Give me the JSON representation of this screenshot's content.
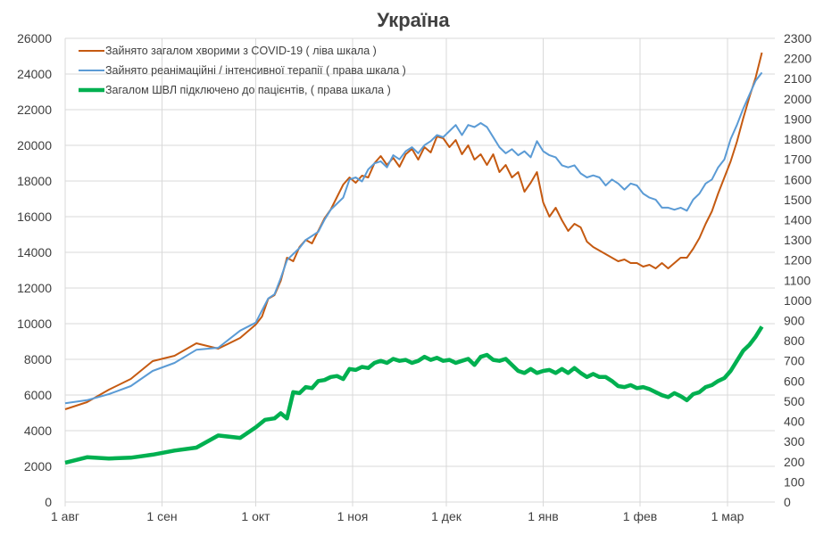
{
  "chart_data": {
    "type": "line",
    "title": "Україна",
    "x_ticks": [
      "1 авг",
      "1 сен",
      "1 окт",
      "1 ноя",
      "1 дек",
      "1 янв",
      "1 фев",
      "1 мар"
    ],
    "x_tick_dates": [
      "08-01",
      "09-01",
      "10-01",
      "11-01",
      "12-01",
      "01-01",
      "02-01",
      "03-01"
    ],
    "y_left": {
      "range": [
        0,
        26000
      ],
      "ticks": [
        "0",
        "2000",
        "4000",
        "6000",
        "8000",
        "10000",
        "12000",
        "14000",
        "16000",
        "18000",
        "20000",
        "22000",
        "24000",
        "26000"
      ]
    },
    "y_right": {
      "range": [
        0,
        2300
      ],
      "ticks": [
        "0",
        "100",
        "200",
        "300",
        "400",
        "500",
        "600",
        "700",
        "800",
        "900",
        "1000",
        "1100",
        "1200",
        "1300",
        "1400",
        "1500",
        "1600",
        "1700",
        "1800",
        "1900",
        "2000",
        "2100",
        "2200",
        "2300"
      ]
    },
    "grid": true,
    "legend_position": "top-left",
    "series": [
      {
        "name": "Зайнято загалом хворими з COVID-19 ( ліва шкала )",
        "axis": "left",
        "color": "#C55A11",
        "points": [
          [
            "08-01",
            5200
          ],
          [
            "08-08",
            5600
          ],
          [
            "08-15",
            6300
          ],
          [
            "08-22",
            6900
          ],
          [
            "08-29",
            7900
          ],
          [
            "09-05",
            8200
          ],
          [
            "09-12",
            8900
          ],
          [
            "09-19",
            8600
          ],
          [
            "09-26",
            9200
          ],
          [
            "10-01",
            9950
          ],
          [
            "10-03",
            10400
          ],
          [
            "10-05",
            11400
          ],
          [
            "10-07",
            11600
          ],
          [
            "10-09",
            12400
          ],
          [
            "10-11",
            13700
          ],
          [
            "10-13",
            13500
          ],
          [
            "10-15",
            14300
          ],
          [
            "10-17",
            14700
          ],
          [
            "10-19",
            14500
          ],
          [
            "10-21",
            15200
          ],
          [
            "10-23",
            15900
          ],
          [
            "10-25",
            16400
          ],
          [
            "10-27",
            17100
          ],
          [
            "10-29",
            17800
          ],
          [
            "10-31",
            18200
          ],
          [
            "11-02",
            17900
          ],
          [
            "11-04",
            18300
          ],
          [
            "11-06",
            18200
          ],
          [
            "11-08",
            19000
          ],
          [
            "11-10",
            19400
          ],
          [
            "11-12",
            18900
          ],
          [
            "11-14",
            19300
          ],
          [
            "11-16",
            18800
          ],
          [
            "11-18",
            19500
          ],
          [
            "11-20",
            19800
          ],
          [
            "11-22",
            19200
          ],
          [
            "11-24",
            19900
          ],
          [
            "11-26",
            19600
          ],
          [
            "11-28",
            20500
          ],
          [
            "11-30",
            20400
          ],
          [
            "12-02",
            19900
          ],
          [
            "12-04",
            20300
          ],
          [
            "12-06",
            19500
          ],
          [
            "12-08",
            20000
          ],
          [
            "12-10",
            19200
          ],
          [
            "12-12",
            19500
          ],
          [
            "12-14",
            18900
          ],
          [
            "12-16",
            19500
          ],
          [
            "12-18",
            18500
          ],
          [
            "12-20",
            18900
          ],
          [
            "12-22",
            18200
          ],
          [
            "12-24",
            18500
          ],
          [
            "12-26",
            17400
          ],
          [
            "12-28",
            17900
          ],
          [
            "12-30",
            18500
          ],
          [
            "01-01",
            16800
          ],
          [
            "01-03",
            16000
          ],
          [
            "01-05",
            16500
          ],
          [
            "01-07",
            15800
          ],
          [
            "01-09",
            15200
          ],
          [
            "01-11",
            15600
          ],
          [
            "01-13",
            15400
          ],
          [
            "01-15",
            14600
          ],
          [
            "01-17",
            14300
          ],
          [
            "01-19",
            14100
          ],
          [
            "01-21",
            13900
          ],
          [
            "01-23",
            13700
          ],
          [
            "01-25",
            13500
          ],
          [
            "01-27",
            13600
          ],
          [
            "01-29",
            13400
          ],
          [
            "01-31",
            13400
          ],
          [
            "02-02",
            13200
          ],
          [
            "02-04",
            13300
          ],
          [
            "02-06",
            13100
          ],
          [
            "02-08",
            13400
          ],
          [
            "02-10",
            13100
          ],
          [
            "02-12",
            13400
          ],
          [
            "02-14",
            13700
          ],
          [
            "02-16",
            13700
          ],
          [
            "02-18",
            14200
          ],
          [
            "02-20",
            14800
          ],
          [
            "02-22",
            15600
          ],
          [
            "02-24",
            16300
          ],
          [
            "02-26",
            17300
          ],
          [
            "02-28",
            18200
          ],
          [
            "03-02",
            19100
          ],
          [
            "03-04",
            20200
          ],
          [
            "03-06",
            21500
          ],
          [
            "03-08",
            22700
          ],
          [
            "03-10",
            23800
          ],
          [
            "03-12",
            25200
          ]
        ]
      },
      {
        "name": "Зайнято реанімаційні / інтенсивної терапії ( права шкала )",
        "axis": "right",
        "color": "#5B9BD5",
        "points": [
          [
            "08-01",
            490
          ],
          [
            "08-08",
            505
          ],
          [
            "08-15",
            535
          ],
          [
            "08-22",
            575
          ],
          [
            "08-29",
            650
          ],
          [
            "09-05",
            690
          ],
          [
            "09-12",
            755
          ],
          [
            "09-19",
            765
          ],
          [
            "09-26",
            850
          ],
          [
            "10-01",
            890
          ],
          [
            "10-03",
            950
          ],
          [
            "10-05",
            1010
          ],
          [
            "10-07",
            1030
          ],
          [
            "10-09",
            1110
          ],
          [
            "10-11",
            1200
          ],
          [
            "10-13",
            1230
          ],
          [
            "10-15",
            1260
          ],
          [
            "10-17",
            1300
          ],
          [
            "10-19",
            1320
          ],
          [
            "10-21",
            1340
          ],
          [
            "10-23",
            1400
          ],
          [
            "10-25",
            1450
          ],
          [
            "10-27",
            1480
          ],
          [
            "10-29",
            1510
          ],
          [
            "10-31",
            1600
          ],
          [
            "11-02",
            1610
          ],
          [
            "11-04",
            1590
          ],
          [
            "11-06",
            1650
          ],
          [
            "11-08",
            1680
          ],
          [
            "11-10",
            1690
          ],
          [
            "11-12",
            1660
          ],
          [
            "11-14",
            1720
          ],
          [
            "11-16",
            1700
          ],
          [
            "11-18",
            1740
          ],
          [
            "11-20",
            1760
          ],
          [
            "11-22",
            1730
          ],
          [
            "11-24",
            1770
          ],
          [
            "11-26",
            1790
          ],
          [
            "11-28",
            1820
          ],
          [
            "11-30",
            1810
          ],
          [
            "12-02",
            1840
          ],
          [
            "12-04",
            1870
          ],
          [
            "12-06",
            1820
          ],
          [
            "12-08",
            1870
          ],
          [
            "12-10",
            1860
          ],
          [
            "12-12",
            1880
          ],
          [
            "12-14",
            1860
          ],
          [
            "12-16",
            1810
          ],
          [
            "12-18",
            1760
          ],
          [
            "12-20",
            1730
          ],
          [
            "12-22",
            1750
          ],
          [
            "12-24",
            1720
          ],
          [
            "12-26",
            1740
          ],
          [
            "12-28",
            1710
          ],
          [
            "12-30",
            1790
          ],
          [
            "01-01",
            1740
          ],
          [
            "01-03",
            1720
          ],
          [
            "01-05",
            1710
          ],
          [
            "01-07",
            1670
          ],
          [
            "01-09",
            1660
          ],
          [
            "01-11",
            1670
          ],
          [
            "01-13",
            1630
          ],
          [
            "01-15",
            1610
          ],
          [
            "01-17",
            1620
          ],
          [
            "01-19",
            1610
          ],
          [
            "01-21",
            1570
          ],
          [
            "01-23",
            1600
          ],
          [
            "01-25",
            1580
          ],
          [
            "01-27",
            1550
          ],
          [
            "01-29",
            1580
          ],
          [
            "01-31",
            1570
          ],
          [
            "02-02",
            1530
          ],
          [
            "02-04",
            1510
          ],
          [
            "02-06",
            1500
          ],
          [
            "02-08",
            1460
          ],
          [
            "02-10",
            1460
          ],
          [
            "02-12",
            1450
          ],
          [
            "02-14",
            1460
          ],
          [
            "02-16",
            1445
          ],
          [
            "02-18",
            1500
          ],
          [
            "02-20",
            1530
          ],
          [
            "02-22",
            1580
          ],
          [
            "02-24",
            1600
          ],
          [
            "02-26",
            1660
          ],
          [
            "02-28",
            1700
          ],
          [
            "03-02",
            1800
          ],
          [
            "03-04",
            1870
          ],
          [
            "03-06",
            1950
          ],
          [
            "03-08",
            2020
          ],
          [
            "03-10",
            2090
          ],
          [
            "03-12",
            2130
          ]
        ]
      },
      {
        "name": "Загалом ШВЛ  підключено до пацієнтів, ( права шкала )",
        "axis": "right",
        "color": "#00B050",
        "points": [
          [
            "08-01",
            195
          ],
          [
            "08-08",
            222
          ],
          [
            "08-15",
            216
          ],
          [
            "08-22",
            220
          ],
          [
            "08-29",
            235
          ],
          [
            "09-05",
            255
          ],
          [
            "09-12",
            270
          ],
          [
            "09-19",
            330
          ],
          [
            "09-26",
            318
          ],
          [
            "10-01",
            370
          ],
          [
            "10-04",
            408
          ],
          [
            "10-07",
            415
          ],
          [
            "10-09",
            440
          ],
          [
            "10-11",
            415
          ],
          [
            "10-13",
            545
          ],
          [
            "10-15",
            540
          ],
          [
            "10-17",
            570
          ],
          [
            "10-19",
            565
          ],
          [
            "10-21",
            600
          ],
          [
            "10-23",
            605
          ],
          [
            "10-25",
            620
          ],
          [
            "10-27",
            625
          ],
          [
            "10-29",
            610
          ],
          [
            "10-31",
            660
          ],
          [
            "11-02",
            655
          ],
          [
            "11-04",
            670
          ],
          [
            "11-06",
            665
          ],
          [
            "11-08",
            690
          ],
          [
            "11-10",
            700
          ],
          [
            "11-12",
            690
          ],
          [
            "11-14",
            710
          ],
          [
            "11-16",
            700
          ],
          [
            "11-18",
            705
          ],
          [
            "11-20",
            690
          ],
          [
            "11-22",
            700
          ],
          [
            "11-24",
            720
          ],
          [
            "11-26",
            705
          ],
          [
            "11-28",
            715
          ],
          [
            "11-30",
            700
          ],
          [
            "12-02",
            705
          ],
          [
            "12-04",
            690
          ],
          [
            "12-06",
            700
          ],
          [
            "12-08",
            710
          ],
          [
            "12-10",
            680
          ],
          [
            "12-12",
            720
          ],
          [
            "12-14",
            730
          ],
          [
            "12-16",
            705
          ],
          [
            "12-18",
            700
          ],
          [
            "12-20",
            710
          ],
          [
            "12-22",
            680
          ],
          [
            "12-24",
            650
          ],
          [
            "12-26",
            640
          ],
          [
            "12-28",
            660
          ],
          [
            "12-30",
            640
          ],
          [
            "01-01",
            650
          ],
          [
            "01-03",
            655
          ],
          [
            "01-05",
            640
          ],
          [
            "01-07",
            660
          ],
          [
            "01-09",
            640
          ],
          [
            "01-11",
            665
          ],
          [
            "01-13",
            640
          ],
          [
            "01-15",
            620
          ],
          [
            "01-17",
            635
          ],
          [
            "01-19",
            620
          ],
          [
            "01-21",
            620
          ],
          [
            "01-23",
            600
          ],
          [
            "01-25",
            575
          ],
          [
            "01-27",
            570
          ],
          [
            "01-29",
            580
          ],
          [
            "01-31",
            565
          ],
          [
            "02-02",
            570
          ],
          [
            "02-04",
            560
          ],
          [
            "02-06",
            545
          ],
          [
            "02-08",
            530
          ],
          [
            "02-10",
            520
          ],
          [
            "02-12",
            540
          ],
          [
            "02-14",
            525
          ],
          [
            "02-16",
            505
          ],
          [
            "02-18",
            535
          ],
          [
            "02-20",
            545
          ],
          [
            "02-22",
            570
          ],
          [
            "02-24",
            580
          ],
          [
            "02-26",
            600
          ],
          [
            "02-28",
            615
          ],
          [
            "03-02",
            650
          ],
          [
            "03-04",
            700
          ],
          [
            "03-06",
            750
          ],
          [
            "03-08",
            780
          ],
          [
            "03-10",
            820
          ],
          [
            "03-12",
            870
          ]
        ]
      }
    ]
  }
}
